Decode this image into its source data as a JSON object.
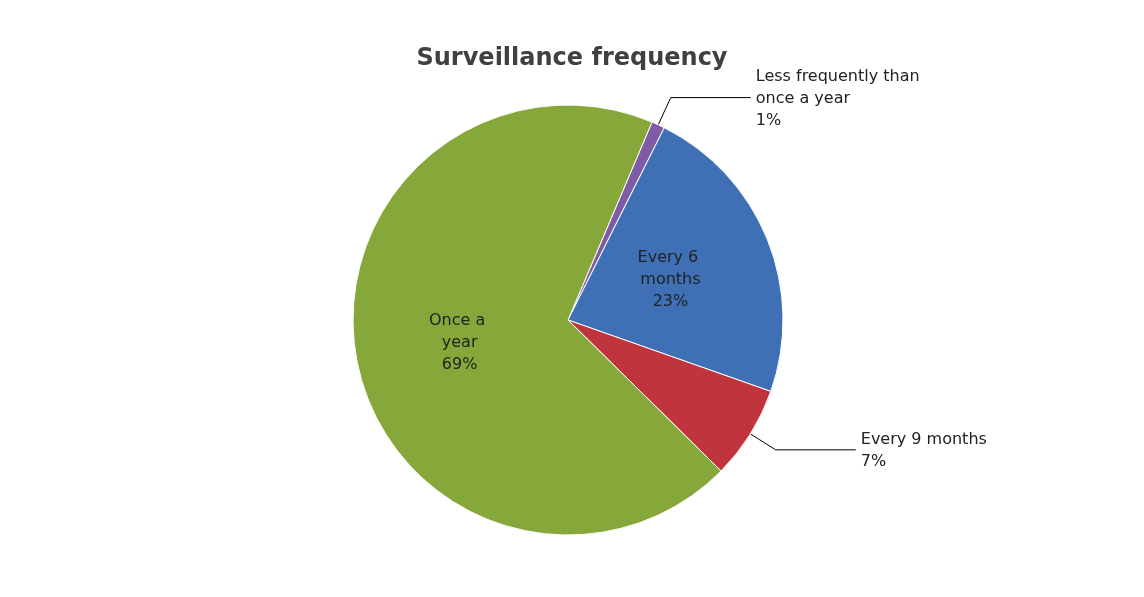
{
  "chart_data": {
    "type": "pie",
    "title": "Surveillance frequency",
    "categories": [
      "Less frequently than once a year",
      "Every 6 months",
      "Every 9 months",
      "Once a year"
    ],
    "values": [
      1,
      23,
      7,
      69
    ],
    "value_labels": [
      "1%",
      "23%",
      "7%",
      "69%"
    ],
    "colors": [
      "#7e5ba4",
      "#3f6fb5",
      "#c0343e",
      "#86a83a"
    ],
    "legend": false
  }
}
